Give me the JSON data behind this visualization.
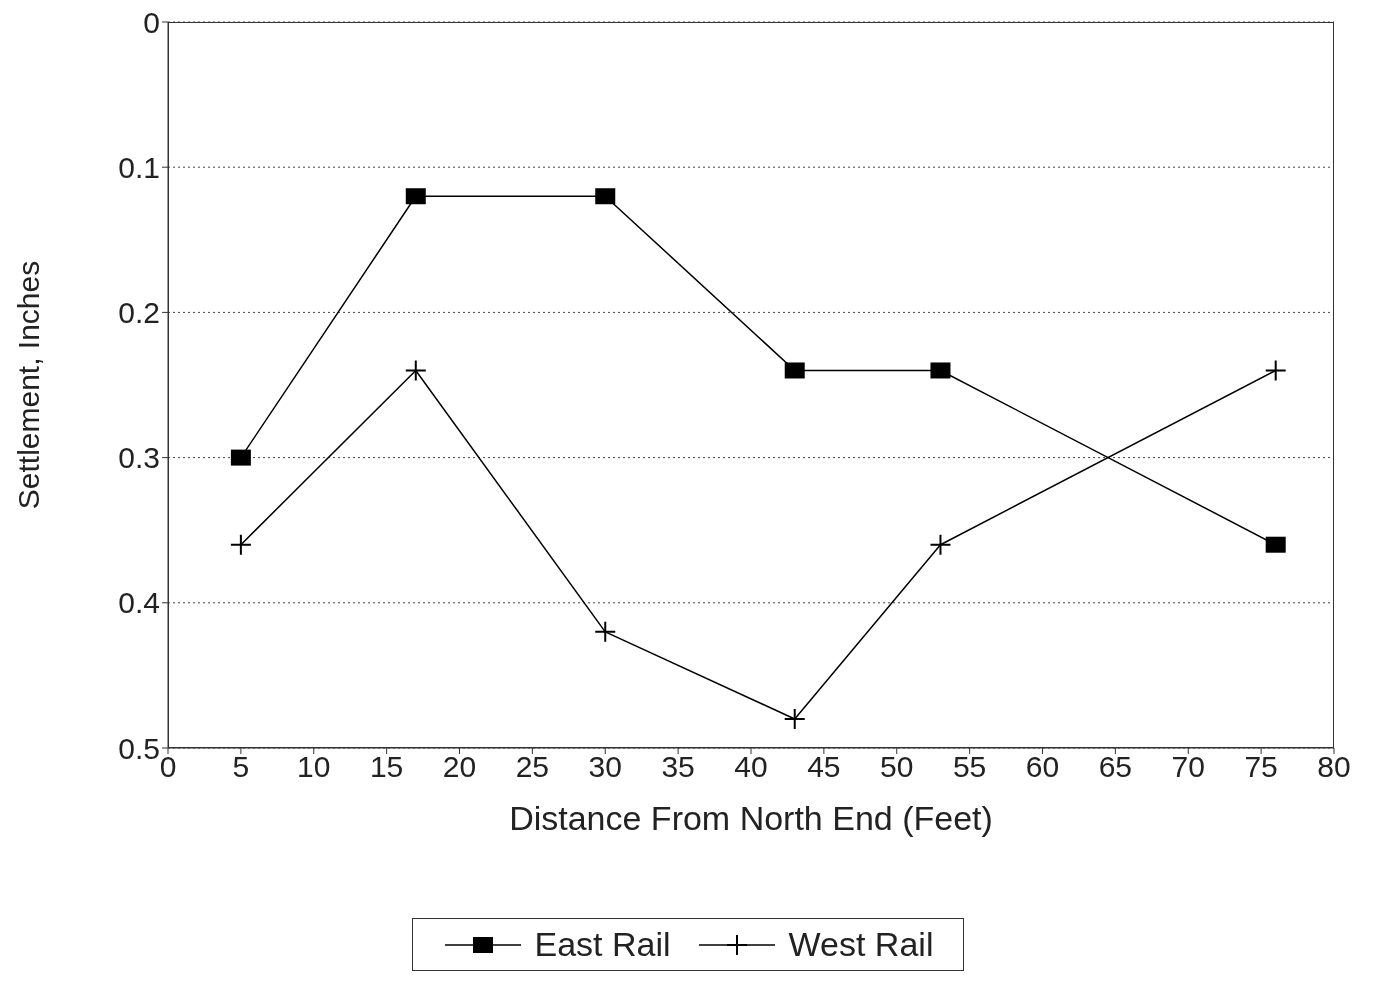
{
  "chart_data": {
    "type": "line",
    "xlabel": "Distance From North End (Feet)",
    "ylabel": "Settlement, Inches",
    "x": [
      5,
      17,
      30,
      43,
      53,
      76
    ],
    "series": [
      {
        "name": "East Rail",
        "color": "#000000",
        "marker": "square",
        "values": [
          0.3,
          0.12,
          0.12,
          0.24,
          0.24,
          0.36
        ]
      },
      {
        "name": "West Rail",
        "color": "#000000",
        "marker": "cross",
        "values": [
          0.36,
          0.24,
          0.42,
          0.48,
          0.36,
          0.24
        ]
      }
    ],
    "xlim": [
      0,
      80
    ],
    "xticks": [
      0,
      5,
      10,
      15,
      20,
      25,
      30,
      35,
      40,
      45,
      50,
      55,
      60,
      65,
      70,
      75,
      80
    ],
    "ylim": [
      0.5,
      0
    ],
    "yticks": [
      0,
      0.1,
      0.2,
      0.3,
      0.4,
      0.5
    ],
    "grid": "y",
    "legend": "bottom",
    "line_style": "solid"
  }
}
